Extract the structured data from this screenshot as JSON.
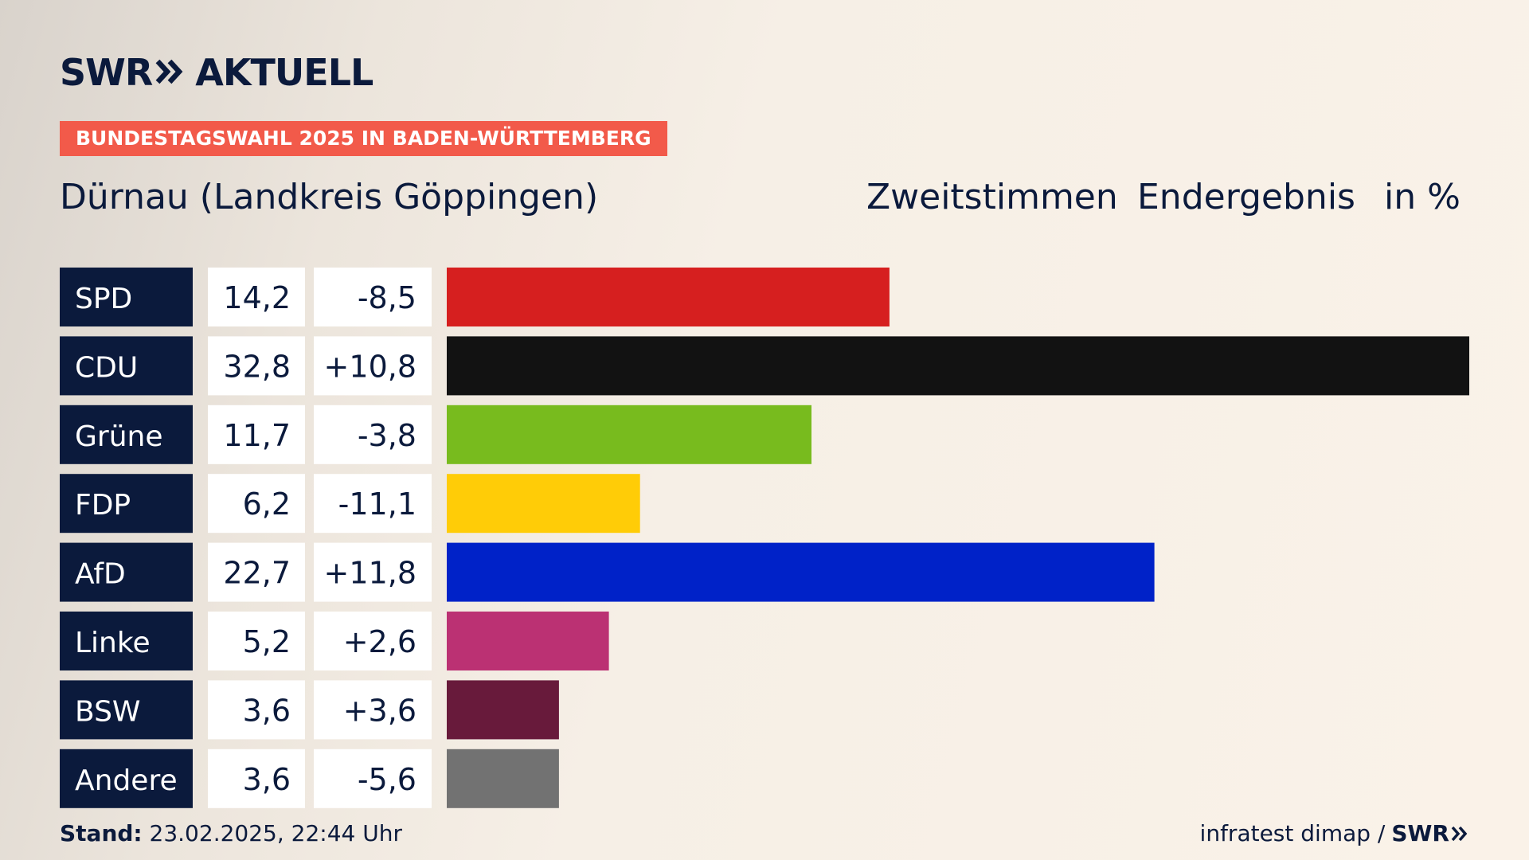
{
  "brand": {
    "logo_left": "SWR",
    "logo_right": "AKTUELL",
    "footer_brand": "SWR"
  },
  "badge": "BUNDESTAGSWAHL 2025 IN BADEN-WÜRTTEMBERG",
  "subtitle": "Dürnau (Landkreis Göppingen)",
  "header": {
    "vote_type": "Zweitstimmen",
    "status": "Endergebnis",
    "unit": "in %"
  },
  "footer": {
    "stand_label": "Stand:",
    "stand_value": "23.02.2025, 22:44 Uhr",
    "source": "infratest dimap /"
  },
  "colors": {
    "navy": "#0b1a3c",
    "badge": "#f25a4a"
  },
  "chart_data": {
    "type": "bar",
    "orientation": "horizontal",
    "categories": [
      "SPD",
      "CDU",
      "Grüne",
      "FDP",
      "AfD",
      "Linke",
      "BSW",
      "Andere"
    ],
    "values": [
      14.2,
      32.8,
      11.7,
      6.2,
      22.7,
      5.2,
      3.6,
      3.6
    ],
    "value_labels": [
      "14,2",
      "32,8",
      "11,7",
      "6,2",
      "22,7",
      "5,2",
      "3,6",
      "3,6"
    ],
    "change_labels": [
      "-8,5",
      "+10,8",
      "-3,8",
      "-11,1",
      "+11,8",
      "+2,6",
      "+3,6",
      "-5,6"
    ],
    "changes": [
      -8.5,
      10.8,
      -3.8,
      -11.1,
      11.8,
      2.6,
      3.6,
      -5.6
    ],
    "colors": [
      "#d61f1f",
      "#121212",
      "#78bb1e",
      "#ffcc07",
      "#0022c8",
      "#bb3173",
      "#681a3b",
      "#727272"
    ],
    "xlim": [
      0,
      32.8
    ],
    "grid": false,
    "legend": "none"
  }
}
